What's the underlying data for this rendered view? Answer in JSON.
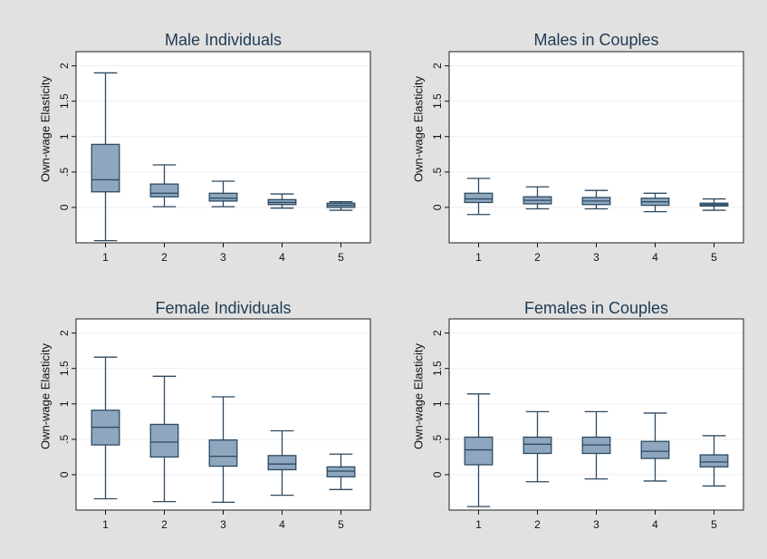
{
  "chart_data": [
    {
      "type": "box",
      "title": "Male Individuals",
      "ylabel": "Own-wage Elasticity",
      "categories": [
        "1",
        "2",
        "3",
        "4",
        "5"
      ],
      "yticks": [
        "0",
        ".5",
        "1",
        "1.5",
        "2"
      ],
      "ylim": [
        -0.5,
        2.2
      ],
      "boxes": [
        {
          "min": -0.47,
          "q1": 0.22,
          "median": 0.39,
          "q3": 0.89,
          "max": 1.9
        },
        {
          "min": 0.01,
          "q1": 0.15,
          "median": 0.2,
          "q3": 0.33,
          "max": 0.6
        },
        {
          "min": 0.01,
          "q1": 0.09,
          "median": 0.13,
          "q3": 0.2,
          "max": 0.37
        },
        {
          "min": -0.01,
          "q1": 0.04,
          "median": 0.07,
          "q3": 0.11,
          "max": 0.19
        },
        {
          "min": -0.04,
          "q1": 0.0,
          "median": 0.03,
          "q3": 0.06,
          "max": 0.08
        }
      ]
    },
    {
      "type": "box",
      "title": "Males in Couples",
      "ylabel": "Own-wage Elasticity",
      "categories": [
        "1",
        "2",
        "3",
        "4",
        "5"
      ],
      "yticks": [
        "0",
        ".5",
        "1",
        "1.5",
        "2"
      ],
      "ylim": [
        -0.5,
        2.2
      ],
      "boxes": [
        {
          "min": -0.1,
          "q1": 0.07,
          "median": 0.12,
          "q3": 0.2,
          "max": 0.41
        },
        {
          "min": -0.02,
          "q1": 0.05,
          "median": 0.1,
          "q3": 0.15,
          "max": 0.29
        },
        {
          "min": -0.02,
          "q1": 0.04,
          "median": 0.09,
          "q3": 0.14,
          "max": 0.24
        },
        {
          "min": -0.06,
          "q1": 0.03,
          "median": 0.08,
          "q3": 0.13,
          "max": 0.2
        },
        {
          "min": -0.04,
          "q1": 0.02,
          "median": 0.04,
          "q3": 0.06,
          "max": 0.12
        }
      ]
    },
    {
      "type": "box",
      "title": "Female Individuals",
      "ylabel": "Own-wage Elasticity",
      "categories": [
        "1",
        "2",
        "3",
        "4",
        "5"
      ],
      "yticks": [
        "0",
        ".5",
        "1",
        "1.5",
        "2"
      ],
      "ylim": [
        -0.5,
        2.2
      ],
      "boxes": [
        {
          "min": -0.34,
          "q1": 0.42,
          "median": 0.67,
          "q3": 0.91,
          "max": 1.66
        },
        {
          "min": -0.38,
          "q1": 0.25,
          "median": 0.46,
          "q3": 0.71,
          "max": 1.39
        },
        {
          "min": -0.39,
          "q1": 0.12,
          "median": 0.26,
          "q3": 0.49,
          "max": 1.1
        },
        {
          "min": -0.29,
          "q1": 0.07,
          "median": 0.15,
          "q3": 0.27,
          "max": 0.62
        },
        {
          "min": -0.21,
          "q1": -0.03,
          "median": 0.05,
          "q3": 0.11,
          "max": 0.29
        }
      ]
    },
    {
      "type": "box",
      "title": "Females in Couples",
      "ylabel": "Own-wage Elasticity",
      "categories": [
        "1",
        "2",
        "3",
        "4",
        "5"
      ],
      "yticks": [
        "0",
        ".5",
        "1",
        "1.5",
        "2"
      ],
      "ylim": [
        -0.5,
        2.2
      ],
      "boxes": [
        {
          "min": -0.45,
          "q1": 0.14,
          "median": 0.35,
          "q3": 0.53,
          "max": 1.14
        },
        {
          "min": -0.1,
          "q1": 0.3,
          "median": 0.43,
          "q3": 0.53,
          "max": 0.89
        },
        {
          "min": -0.06,
          "q1": 0.3,
          "median": 0.42,
          "q3": 0.53,
          "max": 0.89
        },
        {
          "min": -0.09,
          "q1": 0.23,
          "median": 0.33,
          "q3": 0.47,
          "max": 0.87
        },
        {
          "min": -0.16,
          "q1": 0.11,
          "median": 0.18,
          "q3": 0.28,
          "max": 0.55
        }
      ]
    }
  ]
}
